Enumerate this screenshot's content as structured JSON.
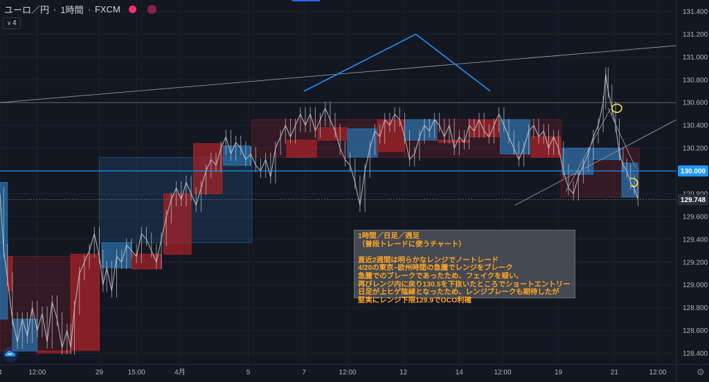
{
  "header": {
    "symbol": "ユーロ／円",
    "separator1": "·",
    "interval": "1時間",
    "separator2": "·",
    "source": "FXCM",
    "indicator_count": "4"
  },
  "note": {
    "lines": [
      "1時間／日足／週足",
      "（普段トレードに使うチャート）",
      "",
      "直近2週間は明らかなレンジでノートレード",
      "4/20の東京~欧州時間の急騰でレンジをブレーク",
      "急騰でのブレークであったため、フェイクを疑い、",
      "再びレンジ内に戻り130.5を下抜いたところでショートエントリー",
      "日足が上ヒゲ陰線となったため、レンジブレークも期待したが",
      "堅実にレンジ下限129.9でOCO利確"
    ]
  },
  "colors": {
    "background": "#131722",
    "up_box": "#2a6fa8",
    "down_box": "#a32328",
    "candle": "#c9cbd1",
    "trend": "#2196f3",
    "annotation": "#ffeb3b",
    "price_line": "#2196f3"
  },
  "chart_data": {
    "type": "line",
    "title": "",
    "ylabel": "",
    "ylim": [
      128.3,
      131.5
    ],
    "y_ticks": [
      131.4,
      131.2,
      131.0,
      130.8,
      130.6,
      130.4,
      130.2,
      130.0,
      129.8,
      129.6,
      129.4,
      129.2,
      129.0,
      128.8,
      128.6,
      128.4
    ],
    "x_ticks": [
      {
        "label": "4",
        "x": 0
      },
      {
        "label": "12:00",
        "x": 3
      },
      {
        "label": "29",
        "x": 8
      },
      {
        "label": "15:00",
        "x": 11
      },
      {
        "label": "4月",
        "x": 14.5
      },
      {
        "label": "5",
        "x": 20
      },
      {
        "label": "7",
        "x": 24.5
      },
      {
        "label": "12:00",
        "x": 28
      },
      {
        "label": "12",
        "x": 32.5
      },
      {
        "label": "14",
        "x": 37
      },
      {
        "label": "12:00",
        "x": 40.5
      },
      {
        "label": "19",
        "x": 45
      },
      {
        "label": "21",
        "x": 49.5
      },
      {
        "label": "12:00",
        "x": 53
      }
    ],
    "x_range": [
      0,
      54.5
    ],
    "price_labels": [
      {
        "value": 130.0,
        "text": "130.000",
        "style": "current"
      },
      {
        "value": 129.748,
        "text": "129.748",
        "style": "last"
      }
    ],
    "weekly_boxes": [
      {
        "x0": 0,
        "x1": 8,
        "open": 129.25,
        "close": 128.42,
        "dir": "down"
      },
      {
        "x0": 8,
        "x1": 20.3,
        "open": 129.37,
        "close": 130.12,
        "dir": "up"
      },
      {
        "x0": 20.3,
        "x1": 32.6,
        "open": 130.45,
        "close": 130.12,
        "dir": "down"
      },
      {
        "x0": 32.6,
        "x1": 45.2,
        "open": 130.45,
        "close": 130.12,
        "dir": "down"
      },
      {
        "x0": 45.2,
        "x1": 51.5,
        "open": 130.2,
        "close": 129.77,
        "dir": "down"
      }
    ],
    "daily_boxes": [
      {
        "x0": 0,
        "x1": 0.6,
        "open": 128.7,
        "close": 129.9,
        "dir": "up"
      },
      {
        "x0": 0.6,
        "x1": 1,
        "open": 129.25,
        "close": 128.95,
        "dir": "down"
      },
      {
        "x0": 1,
        "x1": 3,
        "open": 128.7,
        "close": 128.42,
        "dir": "up"
      },
      {
        "x0": 3,
        "x1": 5.7,
        "open": 128.42,
        "close": 128.42,
        "dir": "down"
      },
      {
        "x0": 5.7,
        "x1": 8,
        "open": 129.27,
        "close": 128.43,
        "dir": "down"
      },
      {
        "x0": 8.2,
        "x1": 10.6,
        "open": 129.15,
        "close": 129.37,
        "dir": "up"
      },
      {
        "x0": 10.6,
        "x1": 13,
        "open": 129.27,
        "close": 129.14,
        "dir": "down"
      },
      {
        "x0": 13.2,
        "x1": 15.4,
        "open": 129.8,
        "close": 129.27,
        "dir": "down"
      },
      {
        "x0": 15.6,
        "x1": 17.9,
        "open": 130.24,
        "close": 129.8,
        "dir": "down"
      },
      {
        "x0": 18,
        "x1": 20.2,
        "open": 130.05,
        "close": 130.22,
        "dir": "up"
      },
      {
        "x0": 23.1,
        "x1": 25.5,
        "open": 130.27,
        "close": 130.12,
        "dir": "down"
      },
      {
        "x0": 25.6,
        "x1": 28,
        "open": 130.38,
        "close": 130.27,
        "dir": "down"
      },
      {
        "x0": 28,
        "x1": 30.4,
        "open": 130.12,
        "close": 130.37,
        "dir": "up"
      },
      {
        "x0": 30.4,
        "x1": 32.6,
        "open": 130.45,
        "close": 130.17,
        "dir": "down"
      },
      {
        "x0": 32.6,
        "x1": 35.2,
        "open": 130.27,
        "close": 130.45,
        "dir": "up"
      },
      {
        "x0": 35.3,
        "x1": 37.8,
        "open": 130.27,
        "close": 130.25,
        "dir": "down"
      },
      {
        "x0": 37.8,
        "x1": 40.3,
        "open": 130.45,
        "close": 130.3,
        "dir": "down"
      },
      {
        "x0": 40.3,
        "x1": 42.7,
        "open": 130.15,
        "close": 130.45,
        "dir": "up"
      },
      {
        "x0": 42.8,
        "x1": 45.2,
        "open": 130.3,
        "close": 130.12,
        "dir": "down"
      },
      {
        "x0": 45.3,
        "x1": 47.8,
        "open": 130.2,
        "close": 129.97,
        "dir": "up"
      },
      {
        "x0": 47.8,
        "x1": 50,
        "open": 130.1,
        "close": 130.2,
        "dir": "up"
      },
      {
        "x0": 50.1,
        "x1": 51.4,
        "open": 130.07,
        "close": 129.77,
        "dir": "up"
      }
    ],
    "price_series": [
      [
        0,
        129.8
      ],
      [
        0.3,
        129.3
      ],
      [
        0.6,
        129.05
      ],
      [
        1,
        128.7
      ],
      [
        1.4,
        128.5
      ],
      [
        1.8,
        128.7
      ],
      [
        2.2,
        128.55
      ],
      [
        2.6,
        128.8
      ],
      [
        3,
        128.6
      ],
      [
        3.4,
        128.75
      ],
      [
        3.8,
        128.5
      ],
      [
        4.2,
        128.85
      ],
      [
        4.6,
        128.7
      ],
      [
        5,
        128.45
      ],
      [
        5.4,
        128.6
      ],
      [
        5.7,
        128.45
      ],
      [
        6,
        128.8
      ],
      [
        6.4,
        129.1
      ],
      [
        6.8,
        129.2
      ],
      [
        7.2,
        129.3
      ],
      [
        7.6,
        129.45
      ],
      [
        8,
        129.25
      ],
      [
        8.3,
        129.0
      ],
      [
        8.6,
        129.15
      ],
      [
        9,
        128.95
      ],
      [
        9.4,
        129.25
      ],
      [
        9.8,
        129.2
      ],
      [
        10.2,
        129.35
      ],
      [
        10.6,
        129.3
      ],
      [
        11,
        129.25
      ],
      [
        11.4,
        129.45
      ],
      [
        11.8,
        129.4
      ],
      [
        12.2,
        129.3
      ],
      [
        12.6,
        129.2
      ],
      [
        13,
        129.4
      ],
      [
        13.4,
        129.6
      ],
      [
        13.8,
        129.75
      ],
      [
        14.2,
        129.85
      ],
      [
        14.6,
        129.75
      ],
      [
        15,
        129.9
      ],
      [
        15.4,
        129.8
      ],
      [
        15.8,
        129.7
      ],
      [
        16.2,
        129.85
      ],
      [
        16.6,
        130.0
      ],
      [
        17,
        130.1
      ],
      [
        17.4,
        130.05
      ],
      [
        17.8,
        130.2
      ],
      [
        18.2,
        130.3
      ],
      [
        18.6,
        130.15
      ],
      [
        19,
        130.25
      ],
      [
        19.4,
        130.2
      ],
      [
        19.8,
        130.1
      ],
      [
        20.2,
        130.15
      ],
      [
        20.6,
        130.05
      ],
      [
        21,
        130.0
      ],
      [
        21.4,
        130.1
      ],
      [
        21.8,
        129.95
      ],
      [
        22.2,
        130.2
      ],
      [
        22.6,
        130.3
      ],
      [
        23,
        130.4
      ],
      [
        23.4,
        130.3
      ],
      [
        23.8,
        130.4
      ],
      [
        24.2,
        130.5
      ],
      [
        24.6,
        130.4
      ],
      [
        25,
        130.5
      ],
      [
        25.4,
        130.35
      ],
      [
        25.8,
        130.45
      ],
      [
        26.2,
        130.55
      ],
      [
        26.6,
        130.45
      ],
      [
        27,
        130.35
      ],
      [
        27.4,
        130.2
      ],
      [
        27.8,
        130.1
      ],
      [
        28.2,
        130.05
      ],
      [
        28.6,
        129.9
      ],
      [
        29,
        129.7
      ],
      [
        29.4,
        130.0
      ],
      [
        29.8,
        130.2
      ],
      [
        30.2,
        130.35
      ],
      [
        30.6,
        130.3
      ],
      [
        31,
        130.45
      ],
      [
        31.4,
        130.4
      ],
      [
        31.8,
        130.5
      ],
      [
        32.2,
        130.45
      ],
      [
        32.6,
        130.3
      ],
      [
        33,
        130.1
      ],
      [
        33.4,
        130.15
      ],
      [
        33.8,
        130.3
      ],
      [
        34.2,
        130.4
      ],
      [
        34.6,
        130.35
      ],
      [
        35,
        130.45
      ],
      [
        35.4,
        130.4
      ],
      [
        35.8,
        130.3
      ],
      [
        36.2,
        130.4
      ],
      [
        36.6,
        130.2
      ],
      [
        37,
        130.3
      ],
      [
        37.4,
        130.25
      ],
      [
        37.8,
        130.4
      ],
      [
        38.2,
        130.35
      ],
      [
        38.6,
        130.45
      ],
      [
        39,
        130.35
      ],
      [
        39.4,
        130.3
      ],
      [
        39.8,
        130.4
      ],
      [
        40.2,
        130.5
      ],
      [
        40.6,
        130.4
      ],
      [
        41,
        130.3
      ],
      [
        41.4,
        130.2
      ],
      [
        41.8,
        130.1
      ],
      [
        42.2,
        130.2
      ],
      [
        42.6,
        130.35
      ],
      [
        43,
        130.4
      ],
      [
        43.4,
        130.3
      ],
      [
        43.8,
        130.35
      ],
      [
        44.2,
        130.2
      ],
      [
        44.6,
        130.3
      ],
      [
        45,
        130.2
      ],
      [
        45.4,
        130.0
      ],
      [
        45.8,
        129.85
      ],
      [
        46.2,
        129.8
      ],
      [
        46.6,
        129.95
      ],
      [
        47,
        130.05
      ],
      [
        47.4,
        130.15
      ],
      [
        47.8,
        130.3
      ],
      [
        48.2,
        130.4
      ],
      [
        48.6,
        130.6
      ],
      [
        48.8,
        130.85
      ],
      [
        49,
        130.7
      ],
      [
        49.3,
        130.55
      ],
      [
        49.6,
        130.4
      ],
      [
        49.9,
        130.15
      ],
      [
        50.2,
        130.05
      ],
      [
        50.5,
        130.0
      ],
      [
        50.8,
        129.9
      ],
      [
        51.1,
        129.85
      ],
      [
        51.4,
        129.75
      ]
    ],
    "range_lines": [
      130.6,
      130.0
    ],
    "trend_lines": [
      {
        "points": [
          [
            0,
            130.6
          ],
          [
            54.5,
            131.1
          ]
        ],
        "style": "thin"
      },
      {
        "points": [
          [
            24.5,
            130.7
          ],
          [
            33.5,
            131.2
          ],
          [
            39.5,
            130.7
          ]
        ],
        "style": "bold"
      },
      {
        "points": [
          [
            41.5,
            129.7
          ],
          [
            54.5,
            130.45
          ]
        ],
        "style": "thin"
      },
      {
        "points": [
          [
            45.6,
            129.82
          ],
          [
            49.2,
            130.55
          ]
        ],
        "style": "thin"
      },
      {
        "points": [
          [
            49.0,
            130.55
          ],
          [
            51.2,
            130.03
          ]
        ],
        "style": "thin"
      }
    ],
    "marks": [
      {
        "x": 49.7,
        "y": 130.55,
        "kind": "ellipse"
      },
      {
        "x": 51.0,
        "y": 129.9,
        "kind": "hook"
      }
    ]
  }
}
